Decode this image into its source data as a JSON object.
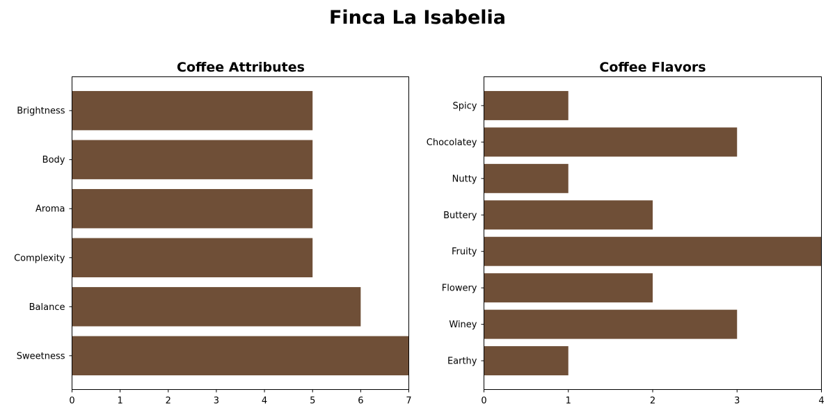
{
  "title": "Finca La Isabelia",
  "colors": {
    "bar": "#6f4f37",
    "axis": "#000000",
    "background": "#ffffff"
  },
  "chart_data": [
    {
      "type": "bar",
      "orientation": "horizontal",
      "title": "Coffee Attributes",
      "categories": [
        "Sweetness",
        "Balance",
        "Complexity",
        "Aroma",
        "Body",
        "Brightness"
      ],
      "values": [
        7,
        6,
        5,
        5,
        5,
        5
      ],
      "xlim": [
        0,
        7
      ],
      "xticks": [
        "0",
        "1",
        "2",
        "3",
        "4",
        "5",
        "6",
        "7"
      ],
      "xlabel": "",
      "ylabel": "",
      "grid": false,
      "legend": null
    },
    {
      "type": "bar",
      "orientation": "horizontal",
      "title": "Coffee Flavors",
      "categories": [
        "Earthy",
        "Winey",
        "Flowery",
        "Fruity",
        "Buttery",
        "Nutty",
        "Chocolatey",
        "Spicy"
      ],
      "values": [
        1,
        3,
        2,
        4,
        2,
        1,
        3,
        1
      ],
      "xlim": [
        0,
        4
      ],
      "xticks": [
        "0",
        "1",
        "2",
        "3",
        "4"
      ],
      "xlabel": "",
      "ylabel": "",
      "grid": false,
      "legend": null
    }
  ]
}
